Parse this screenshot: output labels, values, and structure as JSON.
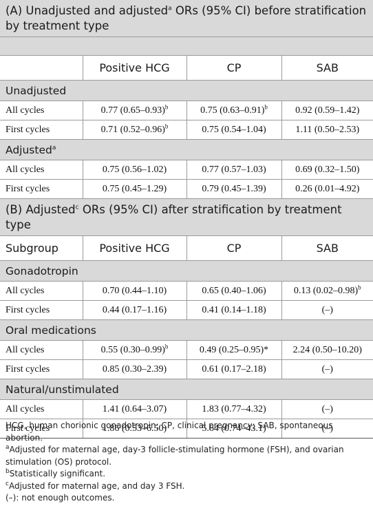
{
  "section_a": {
    "title_part1": "(A) Unadjusted and adjusted",
    "title_sup": "a",
    "title_part2": " ORs (95% CI) before stratification by treatment type"
  },
  "table_a": {
    "headers": [
      "",
      "Positive HCG",
      "CP",
      "SAB"
    ],
    "groups": [
      {
        "label": "Unadjusted",
        "label_sup": "",
        "rows": [
          {
            "label": "All cycles",
            "cells": [
              {
                "value": "0.77 (0.65–0.93)",
                "sup": "b"
              },
              {
                "value": "0.75 (0.63–0.91)",
                "sup": "b"
              },
              {
                "value": "0.92 (0.59–1.42)",
                "sup": ""
              }
            ]
          },
          {
            "label": "First cycles",
            "cells": [
              {
                "value": "0.71 (0.52–0.96)",
                "sup": "b"
              },
              {
                "value": "0.75 (0.54–1.04)",
                "sup": ""
              },
              {
                "value": "1.11 (0.50–2.53)",
                "sup": ""
              }
            ]
          }
        ]
      },
      {
        "label": "Adjusted",
        "label_sup": "a",
        "rows": [
          {
            "label": "All cycles",
            "cells": [
              {
                "value": "0.75 (0.56–1.02)",
                "sup": ""
              },
              {
                "value": "0.77 (0.57–1.03)",
                "sup": ""
              },
              {
                "value": "0.69 (0.32–1.50)",
                "sup": ""
              }
            ]
          },
          {
            "label": "First cycles",
            "cells": [
              {
                "value": "0.75 (0.45–1.29)",
                "sup": ""
              },
              {
                "value": "0.79 (0.45–1.39)",
                "sup": ""
              },
              {
                "value": "0.26 (0.01–4.92)",
                "sup": ""
              }
            ]
          }
        ]
      }
    ]
  },
  "section_b": {
    "title_part1": "(B) Adjusted",
    "title_sup": "c",
    "title_part2": " ORs (95% CI) after stratification by treatment type"
  },
  "table_b": {
    "headers": [
      "Subgroup",
      "Positive HCG",
      "CP",
      "SAB"
    ],
    "groups": [
      {
        "label": "Gonadotropin",
        "label_sup": "",
        "rows": [
          {
            "label": "All cycles",
            "cells": [
              {
                "value": "0.70 (0.44–1.10)",
                "sup": ""
              },
              {
                "value": "0.65 (0.40–1.06)",
                "sup": ""
              },
              {
                "value": "0.13 (0.02–0.98)",
                "sup": "b"
              }
            ]
          },
          {
            "label": "First cycles",
            "cells": [
              {
                "value": "0.44 (0.17–1.16)",
                "sup": ""
              },
              {
                "value": "0.41 (0.14–1.18)",
                "sup": ""
              },
              {
                "value": "(–)",
                "sup": ""
              }
            ]
          }
        ]
      },
      {
        "label": "Oral medications",
        "label_sup": "",
        "rows": [
          {
            "label": "All cycles",
            "cells": [
              {
                "value": "0.55 (0.30–0.99)",
                "sup": "b"
              },
              {
                "value": "0.49 (0.25–0.95)*",
                "sup": ""
              },
              {
                "value": "2.24 (0.50–10.20)",
                "sup": ""
              }
            ]
          },
          {
            "label": "First cycles",
            "cells": [
              {
                "value": "0.85 (0.30–2.39)",
                "sup": ""
              },
              {
                "value": "0.61 (0.17–2.18)",
                "sup": ""
              },
              {
                "value": "(–)",
                "sup": ""
              }
            ]
          }
        ]
      },
      {
        "label": "Natural/unstimulated",
        "label_sup": "",
        "rows": [
          {
            "label": "All cycles",
            "cells": [
              {
                "value": "1.41 (0.64–3.07)",
                "sup": ""
              },
              {
                "value": "1.83 (0.77–4.32)",
                "sup": ""
              },
              {
                "value": "(–)",
                "sup": ""
              }
            ]
          },
          {
            "label": "First cycles",
            "cells": [
              {
                "value": "1.86 (0.53–6.50)",
                "sup": ""
              },
              {
                "value": "5.64 (0.74–43.1)",
                "sup": ""
              },
              {
                "value": "(–)",
                "sup": ""
              }
            ]
          }
        ]
      }
    ]
  },
  "footnotes": [
    {
      "sup": "",
      "text": "HCG, human chorionic gonadotropin; CP, clinical pregnancy; SAB, spontaneous abortion."
    },
    {
      "sup": "a",
      "text": "Adjusted for maternal age, day-3 follicle-stimulating hormone (FSH), and ovarian stimulation (OS) protocol."
    },
    {
      "sup": "b",
      "text": "Statistically significant."
    },
    {
      "sup": "c",
      "text": "Adjusted for maternal age, and day 3 FSH."
    },
    {
      "sup": "",
      "text": "(–): not enough outcomes."
    }
  ]
}
